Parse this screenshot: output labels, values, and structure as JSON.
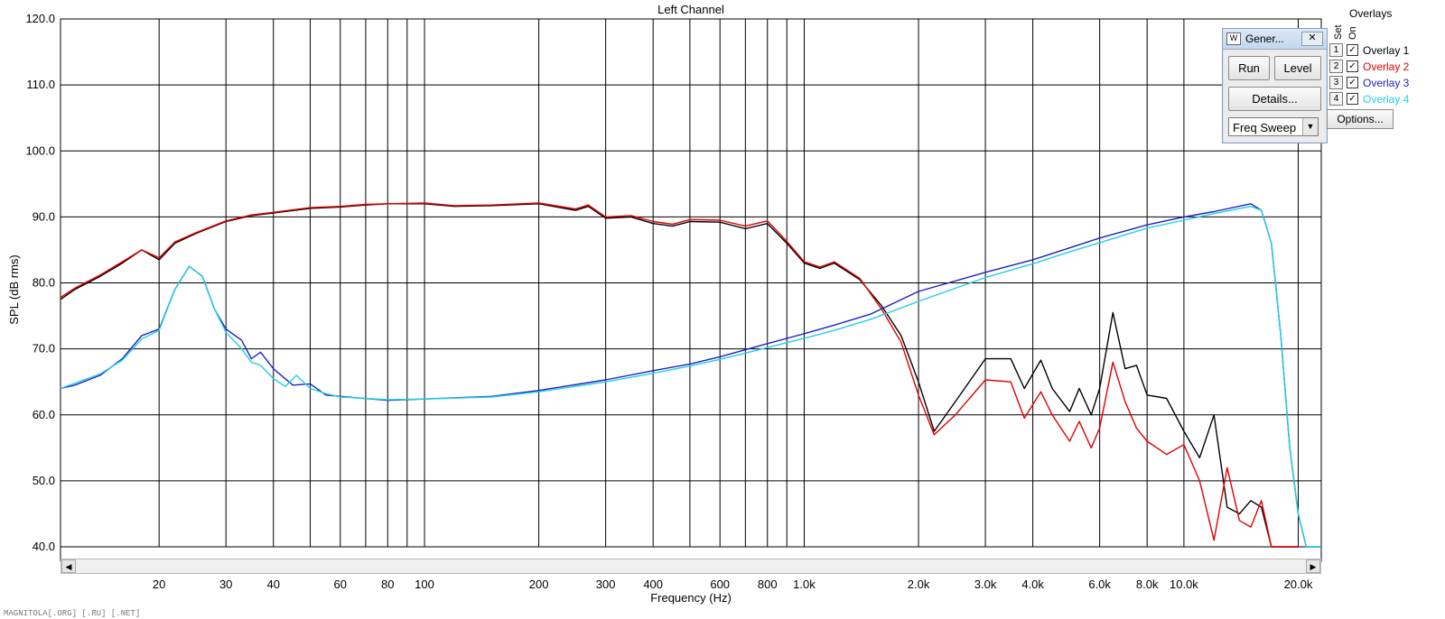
{
  "footer": "MAGNITOLA[.ORG] [.RU] [.NET]",
  "generator": {
    "title": "Gener...",
    "close_icon": "close-icon",
    "run_label": "Run",
    "level_label": "Level",
    "details_label": "Details...",
    "mode_value": "Freq Sweep"
  },
  "overlays": {
    "heading": "Overlays",
    "set_label": "Set",
    "on_label": "On",
    "items": [
      {
        "num": "1",
        "label": "Overlay 1",
        "color": "#000000"
      },
      {
        "num": "2",
        "label": "Overlay 2",
        "color": "#e00000"
      },
      {
        "num": "3",
        "label": "Overlay 3",
        "color": "#2020c0"
      },
      {
        "num": "4",
        "label": "Overlay 4",
        "color": "#20d0e0"
      }
    ],
    "options_label": "Options..."
  },
  "chart_data": {
    "type": "line",
    "title": "Left Channel",
    "xlabel": "Frequency (Hz)",
    "ylabel": "SPL (dB rms)",
    "x_scale": "log",
    "xlim": [
      11,
      23000
    ],
    "ylim": [
      40,
      120
    ],
    "grid": true,
    "x_ticks": [
      {
        "v": 20,
        "label": "20"
      },
      {
        "v": 30,
        "label": "30"
      },
      {
        "v": 40,
        "label": "40"
      },
      {
        "v": 60,
        "label": "60"
      },
      {
        "v": 80,
        "label": "80"
      },
      {
        "v": 100,
        "label": "100"
      },
      {
        "v": 200,
        "label": "200"
      },
      {
        "v": 300,
        "label": "300"
      },
      {
        "v": 400,
        "label": "400"
      },
      {
        "v": 600,
        "label": "600"
      },
      {
        "v": 800,
        "label": "800"
      },
      {
        "v": 1000,
        "label": "1.0k"
      },
      {
        "v": 2000,
        "label": "2.0k"
      },
      {
        "v": 3000,
        "label": "3.0k"
      },
      {
        "v": 4000,
        "label": "4.0k"
      },
      {
        "v": 6000,
        "label": "6.0k"
      },
      {
        "v": 8000,
        "label": "8.0k"
      },
      {
        "v": 10000,
        "label": "10.0k"
      },
      {
        "v": 20000,
        "label": "20.0k"
      }
    ],
    "x_minor": [
      50,
      70,
      90,
      500,
      700,
      900
    ],
    "y_ticks": [
      {
        "v": 40,
        "label": "40.0"
      },
      {
        "v": 50,
        "label": "50.0"
      },
      {
        "v": 60,
        "label": "60.0"
      },
      {
        "v": 70,
        "label": "70.0"
      },
      {
        "v": 80,
        "label": "80.0"
      },
      {
        "v": 90,
        "label": "90.0"
      },
      {
        "v": 100,
        "label": "100.0"
      },
      {
        "v": 110,
        "label": "110.0"
      },
      {
        "v": 120,
        "label": "120.0"
      }
    ],
    "series": [
      {
        "name": "Overlay 1",
        "color": "#000000",
        "points": [
          [
            11,
            77.5
          ],
          [
            12,
            79
          ],
          [
            14,
            81
          ],
          [
            16,
            83
          ],
          [
            18,
            85
          ],
          [
            20,
            83.5
          ],
          [
            22,
            86
          ],
          [
            25,
            87.5
          ],
          [
            30,
            89.3
          ],
          [
            35,
            90.2
          ],
          [
            40,
            90.6
          ],
          [
            50,
            91.3
          ],
          [
            60,
            91.5
          ],
          [
            70,
            91.8
          ],
          [
            80,
            92
          ],
          [
            100,
            92
          ],
          [
            120,
            91.6
          ],
          [
            150,
            91.7
          ],
          [
            200,
            92
          ],
          [
            250,
            91
          ],
          [
            270,
            91.6
          ],
          [
            300,
            89.8
          ],
          [
            350,
            90
          ],
          [
            400,
            89
          ],
          [
            450,
            88.6
          ],
          [
            500,
            89.3
          ],
          [
            600,
            89.2
          ],
          [
            700,
            88.2
          ],
          [
            800,
            89
          ],
          [
            900,
            86
          ],
          [
            1000,
            83
          ],
          [
            1100,
            82.2
          ],
          [
            1200,
            83
          ],
          [
            1400,
            80.5
          ],
          [
            1600,
            76.5
          ],
          [
            1800,
            72
          ],
          [
            2000,
            65
          ],
          [
            2200,
            57.5
          ],
          [
            2500,
            62
          ],
          [
            3000,
            68.5
          ],
          [
            3500,
            68.5
          ],
          [
            3800,
            64
          ],
          [
            4200,
            68.3
          ],
          [
            4500,
            64
          ],
          [
            5000,
            60.5
          ],
          [
            5300,
            64
          ],
          [
            5700,
            60
          ],
          [
            6000,
            64
          ],
          [
            6500,
            75.5
          ],
          [
            7000,
            67
          ],
          [
            7500,
            67.5
          ],
          [
            8000,
            63
          ],
          [
            9000,
            62.5
          ],
          [
            10000,
            57.5
          ],
          [
            11000,
            53.5
          ],
          [
            12000,
            60
          ],
          [
            13000,
            46
          ],
          [
            14000,
            45
          ],
          [
            15000,
            47
          ],
          [
            16000,
            46
          ],
          [
            17000,
            40
          ],
          [
            20000,
            40
          ]
        ]
      },
      {
        "name": "Overlay 2",
        "color": "#e00000",
        "points": [
          [
            11,
            77.8
          ],
          [
            12,
            79.2
          ],
          [
            14,
            81.2
          ],
          [
            16,
            83.2
          ],
          [
            18,
            85
          ],
          [
            20,
            83.8
          ],
          [
            22,
            86.2
          ],
          [
            25,
            87.6
          ],
          [
            30,
            89.4
          ],
          [
            35,
            90.3
          ],
          [
            40,
            90.7
          ],
          [
            50,
            91.4
          ],
          [
            60,
            91.6
          ],
          [
            70,
            91.9
          ],
          [
            80,
            92
          ],
          [
            100,
            92.1
          ],
          [
            120,
            91.7
          ],
          [
            150,
            91.8
          ],
          [
            200,
            92.1
          ],
          [
            250,
            91.2
          ],
          [
            270,
            91.8
          ],
          [
            300,
            90
          ],
          [
            350,
            90.2
          ],
          [
            400,
            89.3
          ],
          [
            450,
            88.9
          ],
          [
            500,
            89.6
          ],
          [
            600,
            89.5
          ],
          [
            700,
            88.6
          ],
          [
            800,
            89.4
          ],
          [
            900,
            86.3
          ],
          [
            1000,
            83.2
          ],
          [
            1100,
            82.4
          ],
          [
            1200,
            83.2
          ],
          [
            1400,
            80.7
          ],
          [
            1600,
            76
          ],
          [
            1800,
            71
          ],
          [
            2000,
            63
          ],
          [
            2200,
            57
          ],
          [
            2500,
            60
          ],
          [
            3000,
            65.3
          ],
          [
            3500,
            65
          ],
          [
            3800,
            59.5
          ],
          [
            4200,
            63.5
          ],
          [
            4500,
            60
          ],
          [
            5000,
            56
          ],
          [
            5300,
            59
          ],
          [
            5700,
            55
          ],
          [
            6000,
            58
          ],
          [
            6500,
            68
          ],
          [
            7000,
            62
          ],
          [
            7500,
            58
          ],
          [
            8000,
            56
          ],
          [
            9000,
            54
          ],
          [
            10000,
            55.5
          ],
          [
            11000,
            50
          ],
          [
            12000,
            41
          ],
          [
            13000,
            52
          ],
          [
            14000,
            44
          ],
          [
            15000,
            43
          ],
          [
            16000,
            47
          ],
          [
            17000,
            40
          ],
          [
            20000,
            40
          ]
        ]
      },
      {
        "name": "Overlay 3",
        "color": "#2020c0",
        "points": [
          [
            11,
            64
          ],
          [
            12,
            64.5
          ],
          [
            14,
            66
          ],
          [
            16,
            68.5
          ],
          [
            18,
            72
          ],
          [
            20,
            73
          ],
          [
            22,
            79
          ],
          [
            24,
            82.5
          ],
          [
            26,
            81
          ],
          [
            28,
            76
          ],
          [
            30,
            73
          ],
          [
            33,
            71.3
          ],
          [
            35,
            68.5
          ],
          [
            37,
            69.5
          ],
          [
            40,
            67
          ],
          [
            45,
            64.5
          ],
          [
            50,
            64.7
          ],
          [
            55,
            63
          ],
          [
            60,
            62.8
          ],
          [
            80,
            62.2
          ],
          [
            100,
            62.4
          ],
          [
            150,
            62.8
          ],
          [
            200,
            63.7
          ],
          [
            300,
            65.3
          ],
          [
            400,
            66.7
          ],
          [
            500,
            67.7
          ],
          [
            600,
            68.8
          ],
          [
            800,
            70.8
          ],
          [
            1000,
            72.3
          ],
          [
            1200,
            73.6
          ],
          [
            1500,
            75.3
          ],
          [
            2000,
            78.7
          ],
          [
            3000,
            81.6
          ],
          [
            4000,
            83.5
          ],
          [
            5000,
            85.3
          ],
          [
            6000,
            86.8
          ],
          [
            8000,
            88.8
          ],
          [
            10000,
            90
          ],
          [
            12000,
            90.8
          ],
          [
            15000,
            92
          ],
          [
            16000,
            91
          ],
          [
            17000,
            86
          ],
          [
            18000,
            72
          ],
          [
            19000,
            55
          ],
          [
            20000,
            45
          ],
          [
            21000,
            40
          ],
          [
            23000,
            40
          ]
        ]
      },
      {
        "name": "Overlay 4",
        "color": "#20d0e0",
        "points": [
          [
            11,
            64
          ],
          [
            12,
            64.8
          ],
          [
            14,
            66.2
          ],
          [
            16,
            68.3
          ],
          [
            18,
            71.5
          ],
          [
            20,
            72.8
          ],
          [
            22,
            79
          ],
          [
            24,
            82.5
          ],
          [
            26,
            81
          ],
          [
            28,
            76
          ],
          [
            30,
            72.5
          ],
          [
            33,
            70
          ],
          [
            35,
            68
          ],
          [
            37,
            67.5
          ],
          [
            40,
            65.5
          ],
          [
            43,
            64.3
          ],
          [
            46,
            66
          ],
          [
            50,
            64
          ],
          [
            55,
            63.2
          ],
          [
            60,
            62.7
          ],
          [
            80,
            62.3
          ],
          [
            100,
            62.4
          ],
          [
            150,
            62.7
          ],
          [
            200,
            63.5
          ],
          [
            300,
            65
          ],
          [
            400,
            66.3
          ],
          [
            500,
            67.4
          ],
          [
            600,
            68.4
          ],
          [
            800,
            70.2
          ],
          [
            1000,
            71.6
          ],
          [
            1200,
            72.8
          ],
          [
            1500,
            74.5
          ],
          [
            2000,
            77.2
          ],
          [
            3000,
            80.8
          ],
          [
            4000,
            82.9
          ],
          [
            5000,
            84.7
          ],
          [
            6000,
            86.1
          ],
          [
            8000,
            88.3
          ],
          [
            10000,
            89.5
          ],
          [
            12000,
            90.5
          ],
          [
            15000,
            91.6
          ],
          [
            16000,
            91
          ],
          [
            17000,
            86
          ],
          [
            18000,
            72
          ],
          [
            19000,
            55
          ],
          [
            20000,
            45
          ],
          [
            21000,
            40
          ],
          [
            23000,
            40
          ]
        ]
      }
    ]
  }
}
